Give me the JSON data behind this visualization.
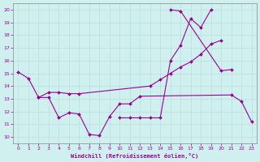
{
  "background_color": "#cff0ee",
  "grid_color": "#b8e0de",
  "line_color": "#990099",
  "title": "Windchill (Refroidissement éolien,°C)",
  "xlim": [
    -0.5,
    23.5
  ],
  "ylim": [
    9.5,
    20.5
  ],
  "xticks": [
    0,
    1,
    2,
    3,
    4,
    5,
    6,
    7,
    8,
    9,
    10,
    11,
    12,
    13,
    14,
    15,
    16,
    17,
    18,
    19,
    20,
    21,
    22,
    23
  ],
  "yticks": [
    10,
    11,
    12,
    13,
    14,
    15,
    16,
    17,
    18,
    19,
    20
  ],
  "series": [
    {
      "x": [
        0,
        1,
        2,
        3,
        4,
        5,
        6,
        7,
        8,
        9,
        10,
        11,
        12,
        21,
        22,
        23
      ],
      "y": [
        15.1,
        14.6,
        13.1,
        13.1,
        11.5,
        11.9,
        11.8,
        10.2,
        10.1,
        11.6,
        12.6,
        12.6,
        13.2,
        13.3,
        12.8,
        11.2
      ]
    },
    {
      "x": [
        2,
        3,
        4,
        5,
        6,
        13,
        14,
        15,
        16,
        17,
        18,
        19,
        20
      ],
      "y": [
        13.1,
        13.5,
        13.5,
        13.4,
        13.4,
        14.0,
        14.5,
        15.0,
        15.5,
        15.9,
        16.5,
        17.3,
        17.6
      ]
    },
    {
      "x": [
        10,
        11,
        12,
        13,
        14,
        15,
        16,
        17,
        18,
        19
      ],
      "y": [
        11.5,
        11.5,
        11.5,
        11.5,
        11.5,
        16.0,
        17.2,
        19.3,
        18.6,
        20.0
      ]
    },
    {
      "x": [
        15,
        16,
        20,
        21
      ],
      "y": [
        20.0,
        19.9,
        15.2,
        15.3
      ]
    }
  ]
}
